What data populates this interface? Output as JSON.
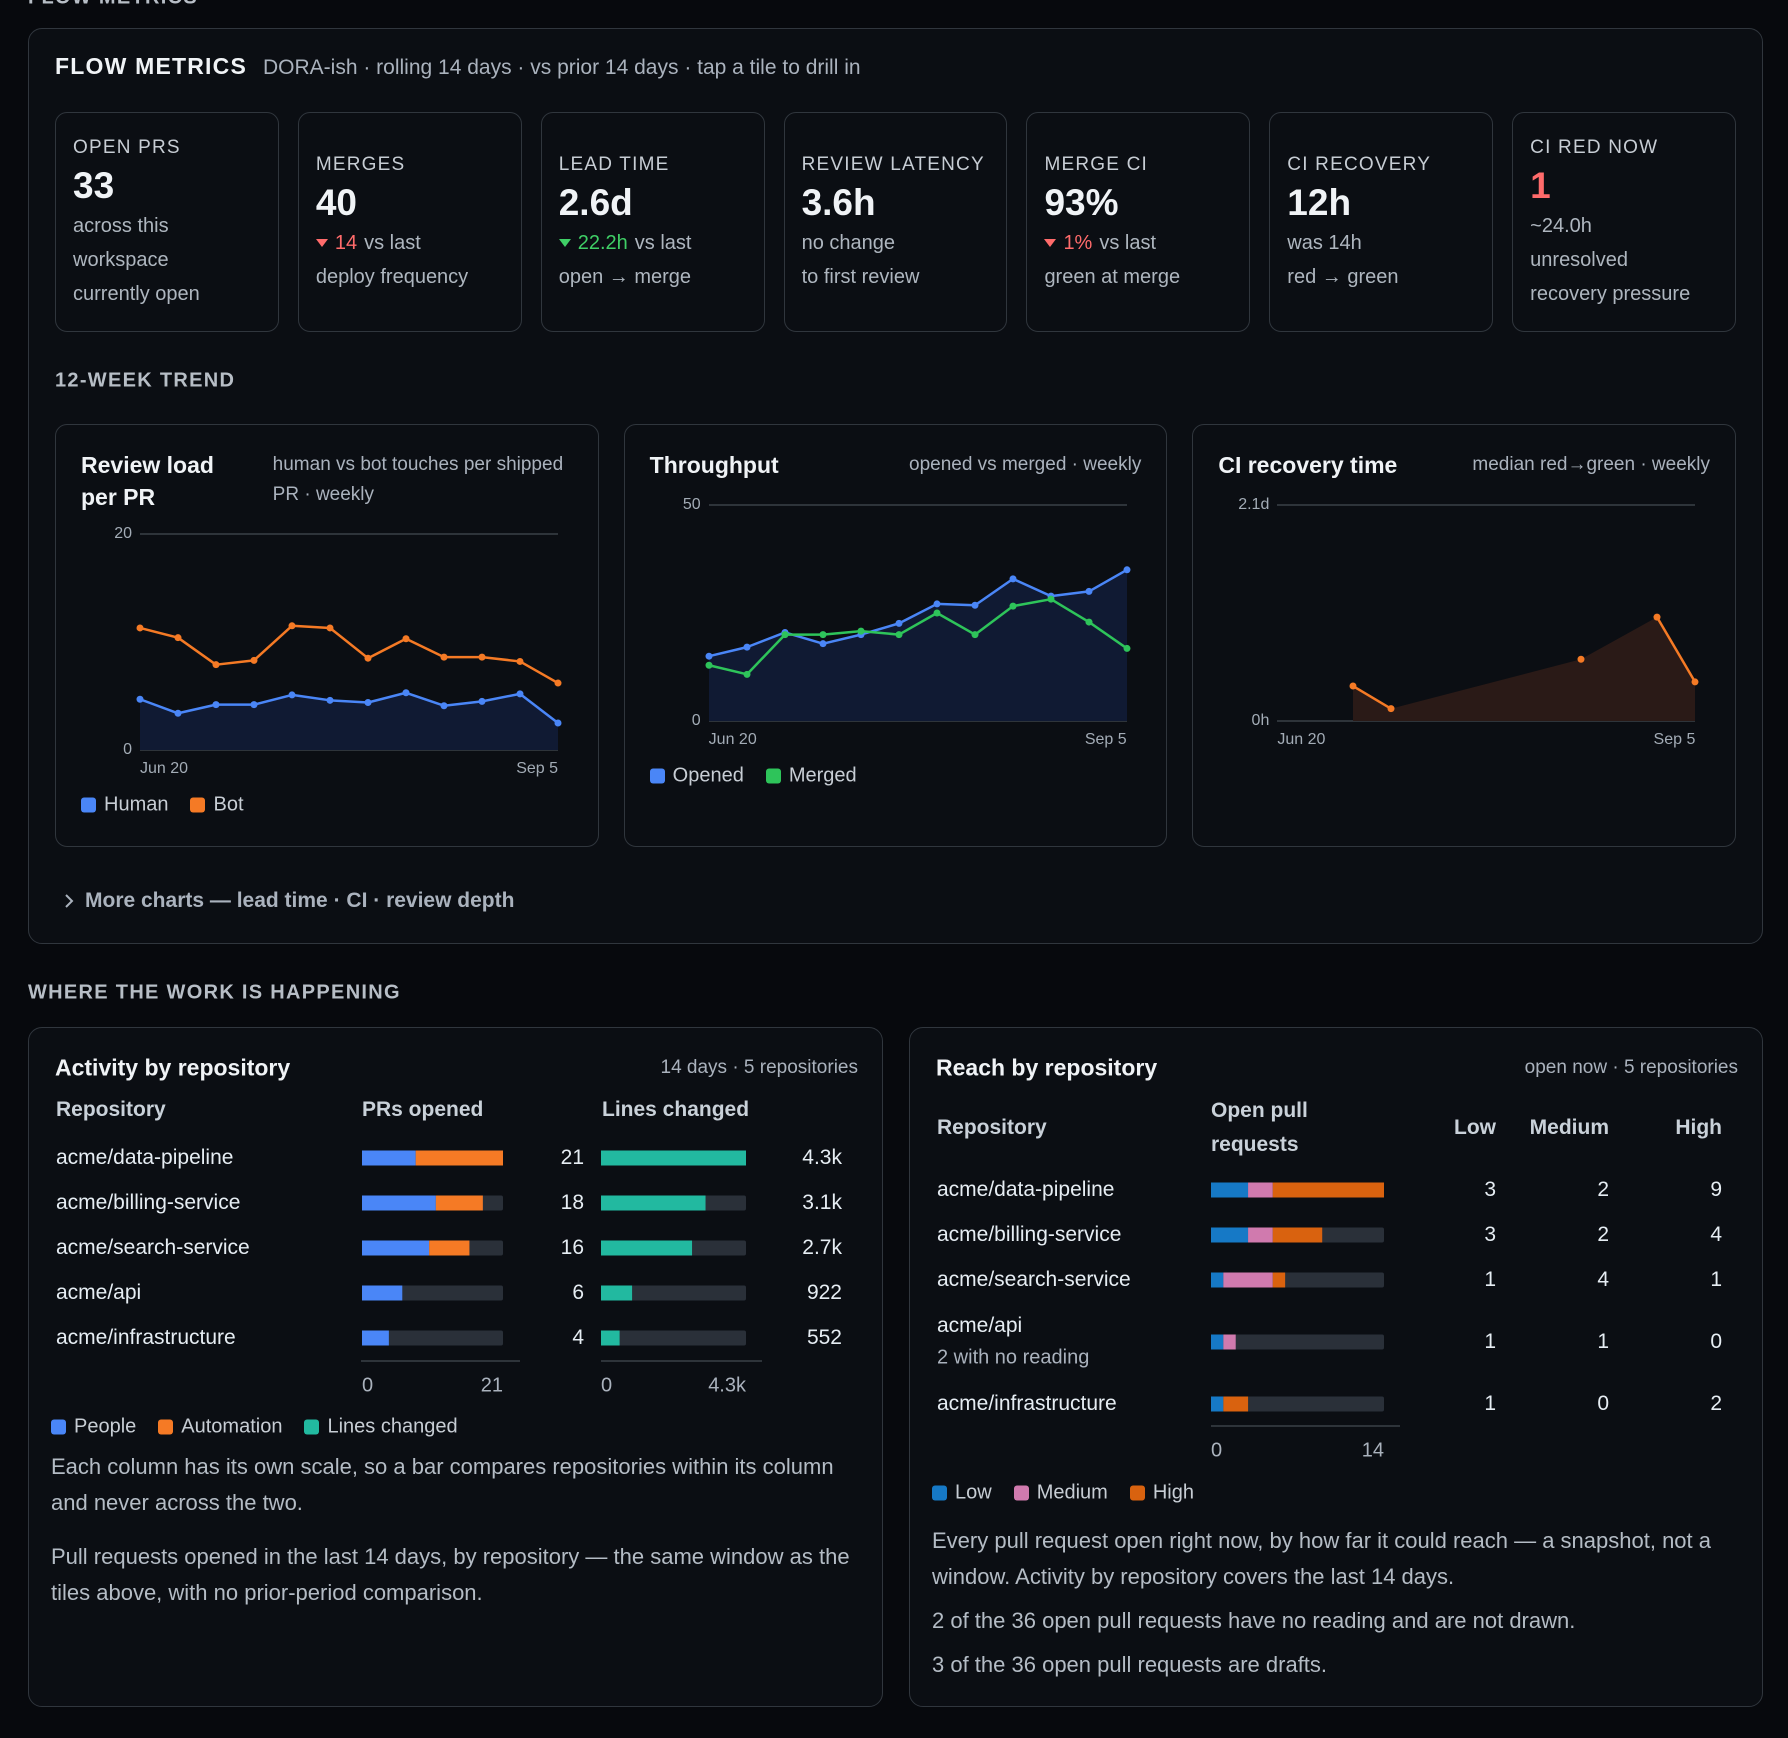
{
  "page_label": "FLOW METRICS",
  "flow": {
    "title": "FLOW METRICS",
    "subtitle": "DORA-ish · rolling 14 days · vs prior 14 days · tap a tile to drill in",
    "tiles": [
      {
        "label": "OPEN PRS",
        "value": 33,
        "lines": [
          "across this workspace",
          "currently open"
        ]
      },
      {
        "label": "MERGES",
        "value": 40,
        "delta": {
          "text": "14",
          "suffix": "vs last",
          "direction": "down",
          "tone": "bad"
        },
        "lines": [
          "deploy frequency"
        ]
      },
      {
        "label": "LEAD TIME",
        "value": "2.6d",
        "delta": {
          "text": "22.2h",
          "suffix": "vs last",
          "direction": "down",
          "tone": "good"
        },
        "lines": [
          "open → merge"
        ]
      },
      {
        "label": "REVIEW LATENCY",
        "value": "3.6h",
        "lines": [
          "no change",
          "to first review"
        ]
      },
      {
        "label": "MERGE CI",
        "value": "93%",
        "delta": {
          "text": "1%",
          "suffix": "vs last",
          "direction": "down",
          "tone": "bad"
        },
        "lines": [
          "green at merge"
        ]
      },
      {
        "label": "CI RECOVERY",
        "value": "12h",
        "lines": [
          "was 14h",
          "red → green"
        ]
      },
      {
        "label": "CI RED NOW",
        "value": 1,
        "value_tone": "bad",
        "lines": [
          "~24.0h",
          "unresolved",
          "recovery pressure"
        ]
      }
    ]
  },
  "trend": {
    "title": "12-WEEK TREND",
    "charts": [
      {
        "type": "line",
        "title": "Review load per PR",
        "subtitle": "human vs bot touches per shipped PR · weekly",
        "categories": [
          "Jun 20",
          null,
          null,
          null,
          null,
          null,
          null,
          null,
          null,
          null,
          null,
          "Sep 5"
        ],
        "ylim": [
          0,
          20
        ],
        "yticks": [
          0,
          20
        ],
        "grid": true,
        "series": [
          {
            "name": "Human",
            "color": "#4a86f7",
            "area": true,
            "fill": "#101a33",
            "values": [
              4.7,
              3.4,
              4.2,
              4.2,
              5.1,
              4.6,
              4.4,
              5.3,
              4.1,
              4.5,
              5.2,
              2.5
            ]
          },
          {
            "name": "Bot",
            "color": "#f57a25",
            "values": [
              11.3,
              10.4,
              7.9,
              8.3,
              11.5,
              11.3,
              8.5,
              10.3,
              8.6,
              8.6,
              8.2,
              6.2
            ]
          }
        ]
      },
      {
        "type": "line",
        "title": "Throughput",
        "subtitle": "opened vs merged · weekly",
        "categories": [
          "Jun 20",
          null,
          null,
          null,
          null,
          null,
          null,
          null,
          null,
          null,
          null,
          "Sep 5"
        ],
        "ylim": [
          0,
          50
        ],
        "yticks": [
          0,
          50
        ],
        "grid": true,
        "series": [
          {
            "name": "Opened",
            "color": "#4a86f7",
            "area": true,
            "fill": "#101a33",
            "values": [
              15.0,
              17.1,
              20.5,
              17.9,
              20.0,
              22.6,
              27.1,
              26.8,
              32.9,
              28.9,
              30.0,
              35.0
            ]
          },
          {
            "name": "Merged",
            "color": "#2ec45a",
            "values": [
              12.9,
              10.8,
              20.0,
              20.0,
              20.8,
              20.0,
              25.0,
              20.0,
              26.6,
              28.2,
              22.9,
              16.8
            ]
          }
        ]
      },
      {
        "type": "line",
        "title": "CI recovery time",
        "subtitle": "median red→green · weekly",
        "categories": [
          "Jun 20",
          null,
          null,
          null,
          null,
          null,
          null,
          null,
          null,
          null,
          null,
          "Sep 5"
        ],
        "ylim": [
          0,
          2.1
        ],
        "yticks": [
          {
            "value": 0,
            "label": "0h"
          },
          {
            "value": 2.1,
            "label": "2.1d"
          }
        ],
        "grid": true,
        "series": [
          {
            "color": "#f57a25",
            "area": true,
            "fill": "#2a1a17",
            "values": [
              null,
              null,
              0.34,
              0.12,
              null,
              null,
              null,
              null,
              0.6,
              null,
              1.01,
              0.38
            ]
          }
        ]
      }
    ]
  },
  "more_charts": "More charts — lead time · CI · review depth",
  "work": {
    "title": "WHERE THE WORK IS HAPPENING",
    "activity": {
      "title": "Activity by repository",
      "meta": "14 days · 5 repositories",
      "columns": [
        "Repository",
        "PRs opened",
        "Lines changed"
      ],
      "segments": [
        {
          "name": "People",
          "color": "#4a86f7"
        },
        {
          "name": "Automation",
          "color": "#f57a25"
        }
      ],
      "lines_series": {
        "name": "Lines changed",
        "color": "#22b9a0"
      },
      "rows": [
        {
          "repo": "acme/data-pipeline",
          "split": [
            8,
            13
          ],
          "prs": 21,
          "lines": 4300,
          "lines_label": "4.3k"
        },
        {
          "repo": "acme/billing-service",
          "split": [
            11,
            7
          ],
          "prs": 18,
          "lines": 3100,
          "lines_label": "3.1k"
        },
        {
          "repo": "acme/search-service",
          "split": [
            10,
            6
          ],
          "prs": 16,
          "lines": 2700,
          "lines_label": "2.7k"
        },
        {
          "repo": "acme/api",
          "split": [
            6,
            0
          ],
          "prs": 6,
          "lines": 922,
          "lines_label": "922"
        },
        {
          "repo": "acme/infrastructure",
          "split": [
            4,
            0
          ],
          "prs": 4,
          "lines": 552,
          "lines_label": "552"
        }
      ],
      "prs_xlim": [
        0,
        21
      ],
      "prs_xticks": [
        0,
        21
      ],
      "lines_xlim": [
        0,
        4300
      ],
      "lines_xticks": [
        0,
        {
          "value": 4300,
          "label": "4.3k"
        }
      ],
      "notes": [
        "Each column has its own scale, so a bar compares repositories within its column and never across the two.",
        "Pull requests opened in the last 14 days, by repository — the same window as the tiles above, with no prior-period comparison."
      ]
    },
    "reach": {
      "title": "Reach by repository",
      "meta": "open now · 5 repositories",
      "columns": [
        "Repository",
        "Open pull requests",
        "Low",
        "Medium",
        "High"
      ],
      "levels": [
        {
          "name": "Low",
          "color": "#1679c6"
        },
        {
          "name": "Medium",
          "color": "#d07aae"
        },
        {
          "name": "High",
          "color": "#d9620f"
        }
      ],
      "rows": [
        {
          "repo": "acme/data-pipeline",
          "counts": [
            3,
            2,
            9
          ]
        },
        {
          "repo": "acme/billing-service",
          "counts": [
            3,
            2,
            4
          ]
        },
        {
          "repo": "acme/search-service",
          "counts": [
            1,
            4,
            1
          ]
        },
        {
          "repo": "acme/api",
          "note": "2 with no reading",
          "counts": [
            1,
            1,
            0
          ]
        },
        {
          "repo": "acme/infrastructure",
          "counts": [
            1,
            0,
            2
          ]
        }
      ],
      "xlim": [
        0,
        14
      ],
      "xticks": [
        0,
        14
      ],
      "notes": [
        "Every pull request open right now, by how far it could reach — a snapshot, not a window. Activity by repository covers the last 14 days.",
        "2 of the 36 open pull requests have no reading and are not drawn.",
        "3 of the 36 open pull requests are drafts."
      ]
    }
  }
}
